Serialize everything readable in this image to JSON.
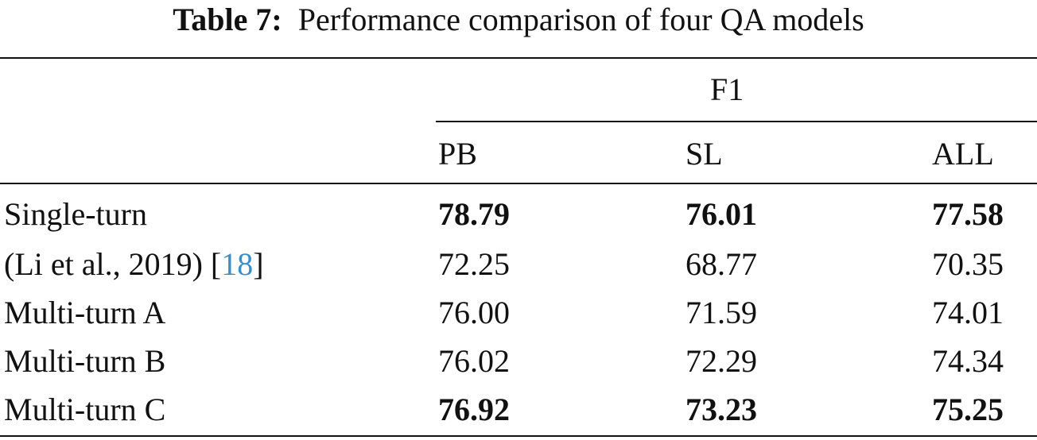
{
  "caption": {
    "label": "Table 7:",
    "text": "Performance comparison of four QA models"
  },
  "header": {
    "group": "F1",
    "columns": [
      "PB",
      "SL",
      "ALL"
    ]
  },
  "rows": [
    {
      "model": "Single-turn",
      "values": [
        "78.79",
        "76.01",
        "77.58"
      ],
      "bold": true
    },
    {
      "model": "(Li et al., 2019) [",
      "cite": "18",
      "model_suffix": "]",
      "values": [
        "72.25",
        "68.77",
        "70.35"
      ],
      "bold": false
    },
    {
      "model": "Multi-turn A",
      "values": [
        "76.00",
        "71.59",
        "74.01"
      ],
      "bold": false
    },
    {
      "model": "Multi-turn B",
      "values": [
        "76.02",
        "72.29",
        "74.34"
      ],
      "bold": false
    },
    {
      "model": "Multi-turn C",
      "values": [
        "76.92",
        "73.23",
        "75.25"
      ],
      "bold": true
    }
  ]
}
